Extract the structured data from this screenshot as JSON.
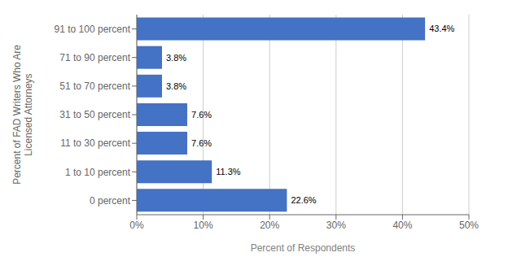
{
  "chart_data": {
    "type": "bar",
    "orientation": "horizontal",
    "categories": [
      "91 to 100 percent",
      "71 to 90 percent",
      "51 to 70 percent",
      "31 to 50 percent",
      "11 to 30 percent",
      "1 to 10 percent",
      "0 percent"
    ],
    "values": [
      43.4,
      3.8,
      3.8,
      7.6,
      7.6,
      11.3,
      22.6
    ],
    "value_labels": [
      "43.4%",
      "3.8%",
      "3.8%",
      "7.6%",
      "7.6%",
      "11.3%",
      "22.6%"
    ],
    "data_labels": true,
    "color": "#4472C4",
    "xlabel": "Percent of Respondents",
    "ylabel": "Percent of FAD Writers Who Are\nLicensed Attorneys",
    "xlim": [
      0,
      50
    ],
    "xticks": [
      {
        "value": 0,
        "label": "0%"
      },
      {
        "value": 10,
        "label": "10%"
      },
      {
        "value": 20,
        "label": "20%"
      },
      {
        "value": 30,
        "label": "30%"
      },
      {
        "value": 40,
        "label": "40%"
      },
      {
        "value": 50,
        "label": "50%"
      }
    ],
    "grid": true
  }
}
